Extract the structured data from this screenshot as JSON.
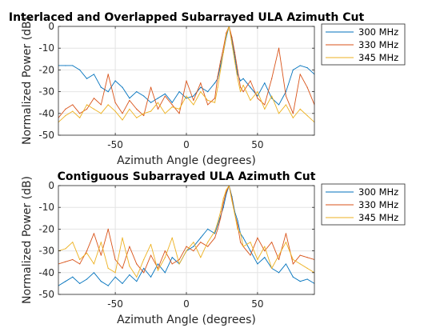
{
  "figure": {
    "background": "#ffffff",
    "series_colors": [
      "#0072BD",
      "#D95319",
      "#EDB120"
    ]
  },
  "chart_data": [
    {
      "type": "line",
      "title": "Interlaced and Overlapped Subarrayed ULA Azimuth Cut",
      "xlabel": "Azimuth Angle (degrees)",
      "ylabel": "Normalized Power (dB)",
      "xlim": [
        -90,
        90
      ],
      "ylim": [
        -50,
        0
      ],
      "xticks": [
        -50,
        0,
        50
      ],
      "yticks": [
        0,
        -10,
        -20,
        -30,
        -40,
        -50
      ],
      "grid": true,
      "legend": "outside-top-right",
      "peak_at": 30,
      "series": [
        {
          "name": "300 MHz",
          "color": "#0072BD",
          "x": [
            -90,
            -85,
            -80,
            -75,
            -70,
            -65,
            -60,
            -55,
            -50,
            -45,
            -40,
            -35,
            -30,
            -25,
            -20,
            -15,
            -10,
            -5,
            0,
            5,
            10,
            15,
            20,
            22,
            24,
            26,
            28,
            30,
            32,
            34,
            36,
            38,
            40,
            45,
            50,
            55,
            60,
            65,
            70,
            75,
            80,
            85,
            90
          ],
          "y": [
            -18,
            -18,
            -18,
            -20,
            -24,
            -22,
            -28,
            -30,
            -25,
            -28,
            -33,
            -30,
            -32,
            -35,
            -33,
            -31,
            -35,
            -30,
            -33,
            -32,
            -28,
            -30,
            -26,
            -24,
            -18,
            -12,
            -5,
            0,
            -6,
            -14,
            -22,
            -25,
            -24,
            -28,
            -32,
            -26,
            -33,
            -36,
            -30,
            -20,
            -18,
            -19,
            -22
          ]
        },
        {
          "name": "330 MHz",
          "color": "#D95319",
          "x": [
            -90,
            -85,
            -80,
            -75,
            -70,
            -65,
            -60,
            -55,
            -50,
            -45,
            -40,
            -35,
            -30,
            -25,
            -20,
            -15,
            -10,
            -5,
            0,
            5,
            10,
            15,
            20,
            22,
            24,
            26,
            28,
            30,
            32,
            34,
            36,
            38,
            40,
            45,
            50,
            55,
            60,
            65,
            70,
            75,
            80,
            85,
            90
          ],
          "y": [
            -42,
            -38,
            -36,
            -40,
            -38,
            -33,
            -36,
            -22,
            -35,
            -40,
            -34,
            -38,
            -41,
            -28,
            -38,
            -32,
            -36,
            -40,
            -25,
            -34,
            -26,
            -36,
            -33,
            -23,
            -16,
            -10,
            -3,
            0,
            -5,
            -12,
            -20,
            -28,
            -30,
            -25,
            -33,
            -36,
            -24,
            -10,
            -32,
            -40,
            -22,
            -28,
            -36
          ]
        },
        {
          "name": "345 MHz",
          "color": "#EDB120",
          "x": [
            -90,
            -85,
            -80,
            -75,
            -70,
            -65,
            -60,
            -55,
            -50,
            -45,
            -40,
            -35,
            -30,
            -25,
            -20,
            -15,
            -10,
            -5,
            0,
            5,
            10,
            15,
            20,
            22,
            24,
            26,
            28,
            30,
            32,
            34,
            36,
            38,
            40,
            45,
            50,
            55,
            60,
            65,
            70,
            75,
            80,
            85,
            90
          ],
          "y": [
            -44,
            -41,
            -39,
            -42,
            -36,
            -38,
            -40,
            -36,
            -39,
            -43,
            -38,
            -42,
            -40,
            -39,
            -35,
            -40,
            -37,
            -38,
            -32,
            -36,
            -30,
            -34,
            -35,
            -28,
            -20,
            -12,
            -4,
            0,
            -8,
            -16,
            -24,
            -30,
            -27,
            -34,
            -30,
            -38,
            -32,
            -40,
            -36,
            -42,
            -38,
            -41,
            -44
          ]
        }
      ]
    },
    {
      "type": "line",
      "title": "Contiguous Subarrayed ULA Azimuth Cut",
      "xlabel": "Azimuth Angle (degrees)",
      "ylabel": "Normalized Power (dB)",
      "xlim": [
        -90,
        90
      ],
      "ylim": [
        -50,
        0
      ],
      "xticks": [
        -50,
        0,
        50
      ],
      "yticks": [
        0,
        -10,
        -20,
        -30,
        -40,
        -50
      ],
      "grid": true,
      "legend": "outside-top-right",
      "peak_at": 30,
      "series": [
        {
          "name": "300 MHz",
          "color": "#0072BD",
          "x": [
            -90,
            -85,
            -80,
            -75,
            -70,
            -65,
            -60,
            -55,
            -50,
            -45,
            -40,
            -35,
            -30,
            -25,
            -20,
            -15,
            -10,
            -5,
            0,
            5,
            10,
            15,
            20,
            22,
            24,
            26,
            28,
            30,
            32,
            34,
            36,
            38,
            40,
            45,
            50,
            55,
            60,
            65,
            70,
            75,
            80,
            85,
            90
          ],
          "y": [
            -46,
            -44,
            -42,
            -45,
            -43,
            -40,
            -44,
            -46,
            -42,
            -45,
            -41,
            -44,
            -38,
            -42,
            -36,
            -40,
            -33,
            -36,
            -30,
            -28,
            -24,
            -20,
            -22,
            -18,
            -14,
            -10,
            -4,
            0,
            -5,
            -12,
            -16,
            -22,
            -24,
            -30,
            -36,
            -33,
            -38,
            -40,
            -36,
            -42,
            -44,
            -43,
            -45
          ]
        },
        {
          "name": "330 MHz",
          "color": "#D95319",
          "x": [
            -90,
            -85,
            -80,
            -75,
            -70,
            -65,
            -60,
            -55,
            -50,
            -45,
            -40,
            -35,
            -30,
            -25,
            -20,
            -15,
            -10,
            -5,
            0,
            5,
            10,
            15,
            20,
            22,
            24,
            26,
            28,
            30,
            32,
            34,
            36,
            38,
            40,
            45,
            50,
            55,
            60,
            65,
            70,
            75,
            80,
            85,
            90
          ],
          "y": [
            -36,
            -35,
            -34,
            -36,
            -30,
            -22,
            -32,
            -20,
            -34,
            -38,
            -28,
            -36,
            -40,
            -32,
            -38,
            -30,
            -36,
            -34,
            -28,
            -30,
            -26,
            -28,
            -24,
            -20,
            -15,
            -8,
            -3,
            0,
            -6,
            -13,
            -18,
            -26,
            -28,
            -32,
            -24,
            -30,
            -26,
            -34,
            -22,
            -36,
            -32,
            -33,
            -34
          ]
        },
        {
          "name": "345 MHz",
          "color": "#EDB120",
          "x": [
            -90,
            -85,
            -80,
            -75,
            -70,
            -65,
            -60,
            -55,
            -50,
            -45,
            -40,
            -35,
            -30,
            -25,
            -20,
            -15,
            -10,
            -5,
            0,
            5,
            10,
            15,
            20,
            22,
            24,
            26,
            28,
            30,
            32,
            34,
            36,
            38,
            40,
            45,
            50,
            55,
            60,
            65,
            70,
            75,
            80,
            85,
            90
          ],
          "y": [
            -30,
            -29,
            -26,
            -34,
            -31,
            -36,
            -26,
            -38,
            -40,
            -24,
            -37,
            -42,
            -34,
            -27,
            -39,
            -33,
            -24,
            -36,
            -30,
            -26,
            -33,
            -26,
            -21,
            -17,
            -12,
            -6,
            -2,
            0,
            -7,
            -13,
            -20,
            -22,
            -28,
            -26,
            -34,
            -28,
            -38,
            -32,
            -26,
            -34,
            -36,
            -38,
            -40
          ]
        }
      ]
    }
  ]
}
